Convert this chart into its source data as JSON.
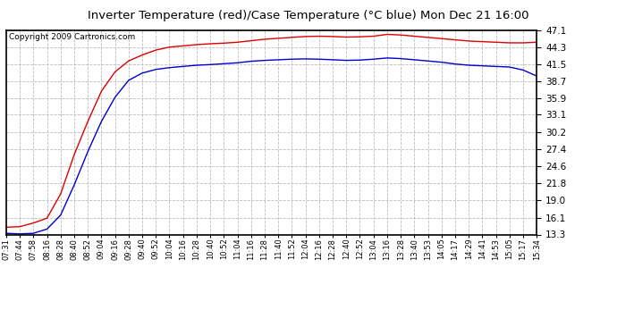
{
  "title": "Inverter Temperature (red)/Case Temperature (°C blue) Mon Dec 21 16:00",
  "copyright": "Copyright 2009 Cartronics.com",
  "background_color": "#ffffff",
  "plot_bg_color": "#ffffff",
  "grid_color": "#bbbbbb",
  "yticks": [
    13.3,
    16.1,
    19.0,
    21.8,
    24.6,
    27.4,
    30.2,
    33.1,
    35.9,
    38.7,
    41.5,
    44.3,
    47.1
  ],
  "ylim": [
    13.3,
    47.1
  ],
  "xtick_labels": [
    "07:31",
    "07:44",
    "07:58",
    "08:16",
    "08:28",
    "08:40",
    "08:52",
    "09:04",
    "09:16",
    "09:28",
    "09:40",
    "09:52",
    "10:04",
    "10:16",
    "10:28",
    "10:40",
    "10:52",
    "11:04",
    "11:16",
    "11:28",
    "11:40",
    "11:52",
    "12:04",
    "12:16",
    "12:28",
    "12:40",
    "12:52",
    "13:04",
    "13:16",
    "13:28",
    "13:40",
    "13:53",
    "14:05",
    "14:17",
    "14:29",
    "14:41",
    "14:53",
    "15:05",
    "15:17",
    "15:34"
  ],
  "red_data": [
    14.5,
    14.6,
    15.2,
    16.0,
    20.0,
    26.5,
    32.0,
    37.0,
    40.2,
    42.0,
    43.0,
    43.8,
    44.3,
    44.5,
    44.7,
    44.85,
    44.95,
    45.1,
    45.35,
    45.6,
    45.75,
    45.9,
    46.05,
    46.1,
    46.05,
    45.95,
    46.0,
    46.1,
    46.4,
    46.3,
    46.1,
    45.9,
    45.7,
    45.5,
    45.3,
    45.2,
    45.1,
    45.0,
    45.0,
    45.1
  ],
  "blue_data": [
    13.5,
    13.4,
    13.5,
    14.2,
    16.5,
    21.5,
    27.0,
    32.0,
    36.0,
    38.8,
    40.0,
    40.6,
    40.9,
    41.1,
    41.3,
    41.4,
    41.55,
    41.7,
    41.95,
    42.1,
    42.2,
    42.3,
    42.35,
    42.3,
    42.2,
    42.1,
    42.15,
    42.3,
    42.5,
    42.4,
    42.2,
    42.0,
    41.8,
    41.5,
    41.3,
    41.2,
    41.1,
    41.0,
    40.5,
    39.5
  ],
  "red_color": "#dd0000",
  "blue_color": "#0000cc",
  "line_width": 1.0
}
